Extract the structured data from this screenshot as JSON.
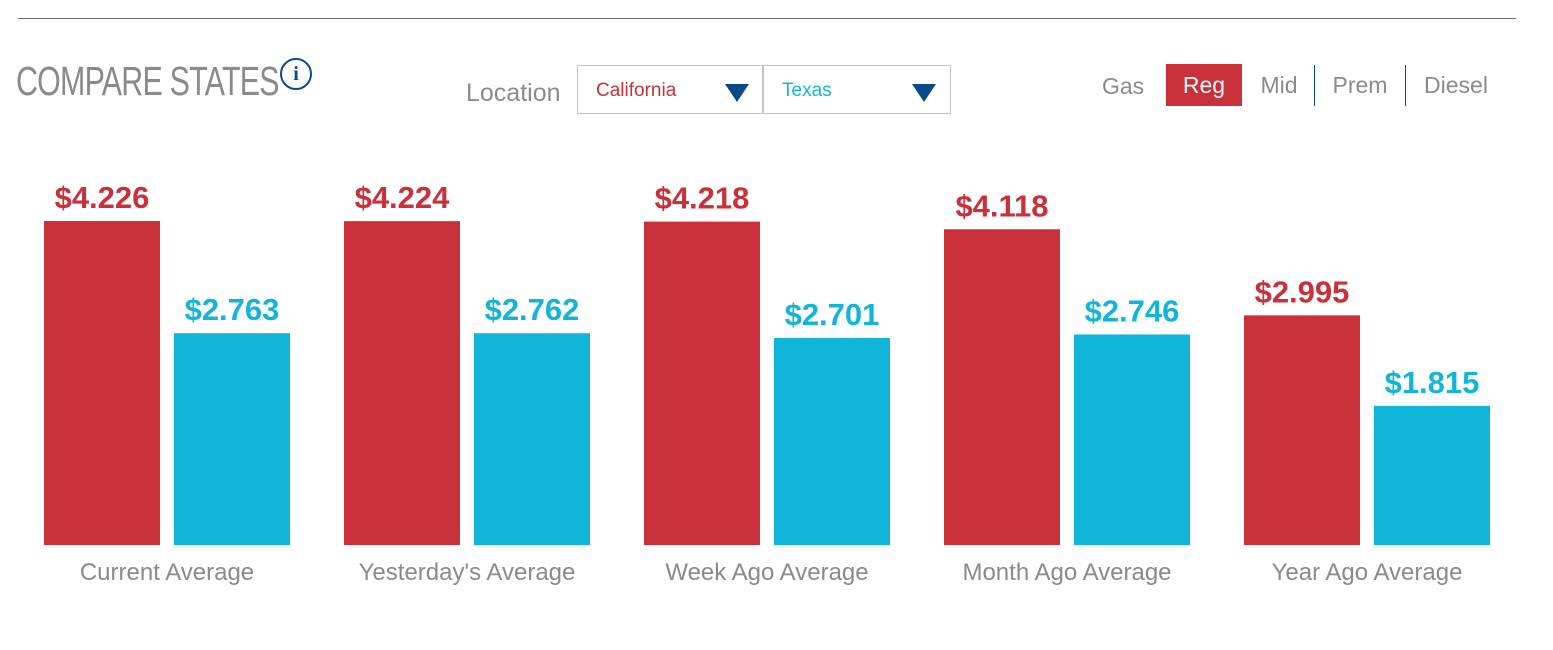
{
  "header": {
    "title": "COMPARE STATES",
    "info_icon": "info-icon",
    "location_label": "Location",
    "location_left": "California",
    "location_right": "Texas",
    "gas_label": "Gas",
    "gas_options": [
      "Reg",
      "Mid",
      "Prem",
      "Diesel"
    ],
    "gas_selected": "Reg"
  },
  "colors": {
    "california": "#c9303a",
    "texas": "#12b5da",
    "accent_blue": "#0b4a8a",
    "label_gray": "#8a8a8a"
  },
  "chart_data": {
    "type": "bar",
    "categories": [
      "Current Average",
      "Yesterday's Average",
      "Week Ago Average",
      "Month Ago Average",
      "Year Ago Average"
    ],
    "series": [
      {
        "name": "California",
        "values": [
          4.226,
          4.224,
          4.218,
          4.118,
          2.995
        ],
        "labels": [
          "$4.226",
          "$4.224",
          "$4.218",
          "$4.118",
          "$2.995"
        ]
      },
      {
        "name": "Texas",
        "values": [
          2.763,
          2.762,
          2.701,
          2.746,
          1.815
        ],
        "labels": [
          "$2.763",
          "$2.762",
          "$2.701",
          "$2.746",
          "$1.815"
        ]
      }
    ],
    "ylim": [
      0,
      4.226
    ],
    "grid": false
  }
}
